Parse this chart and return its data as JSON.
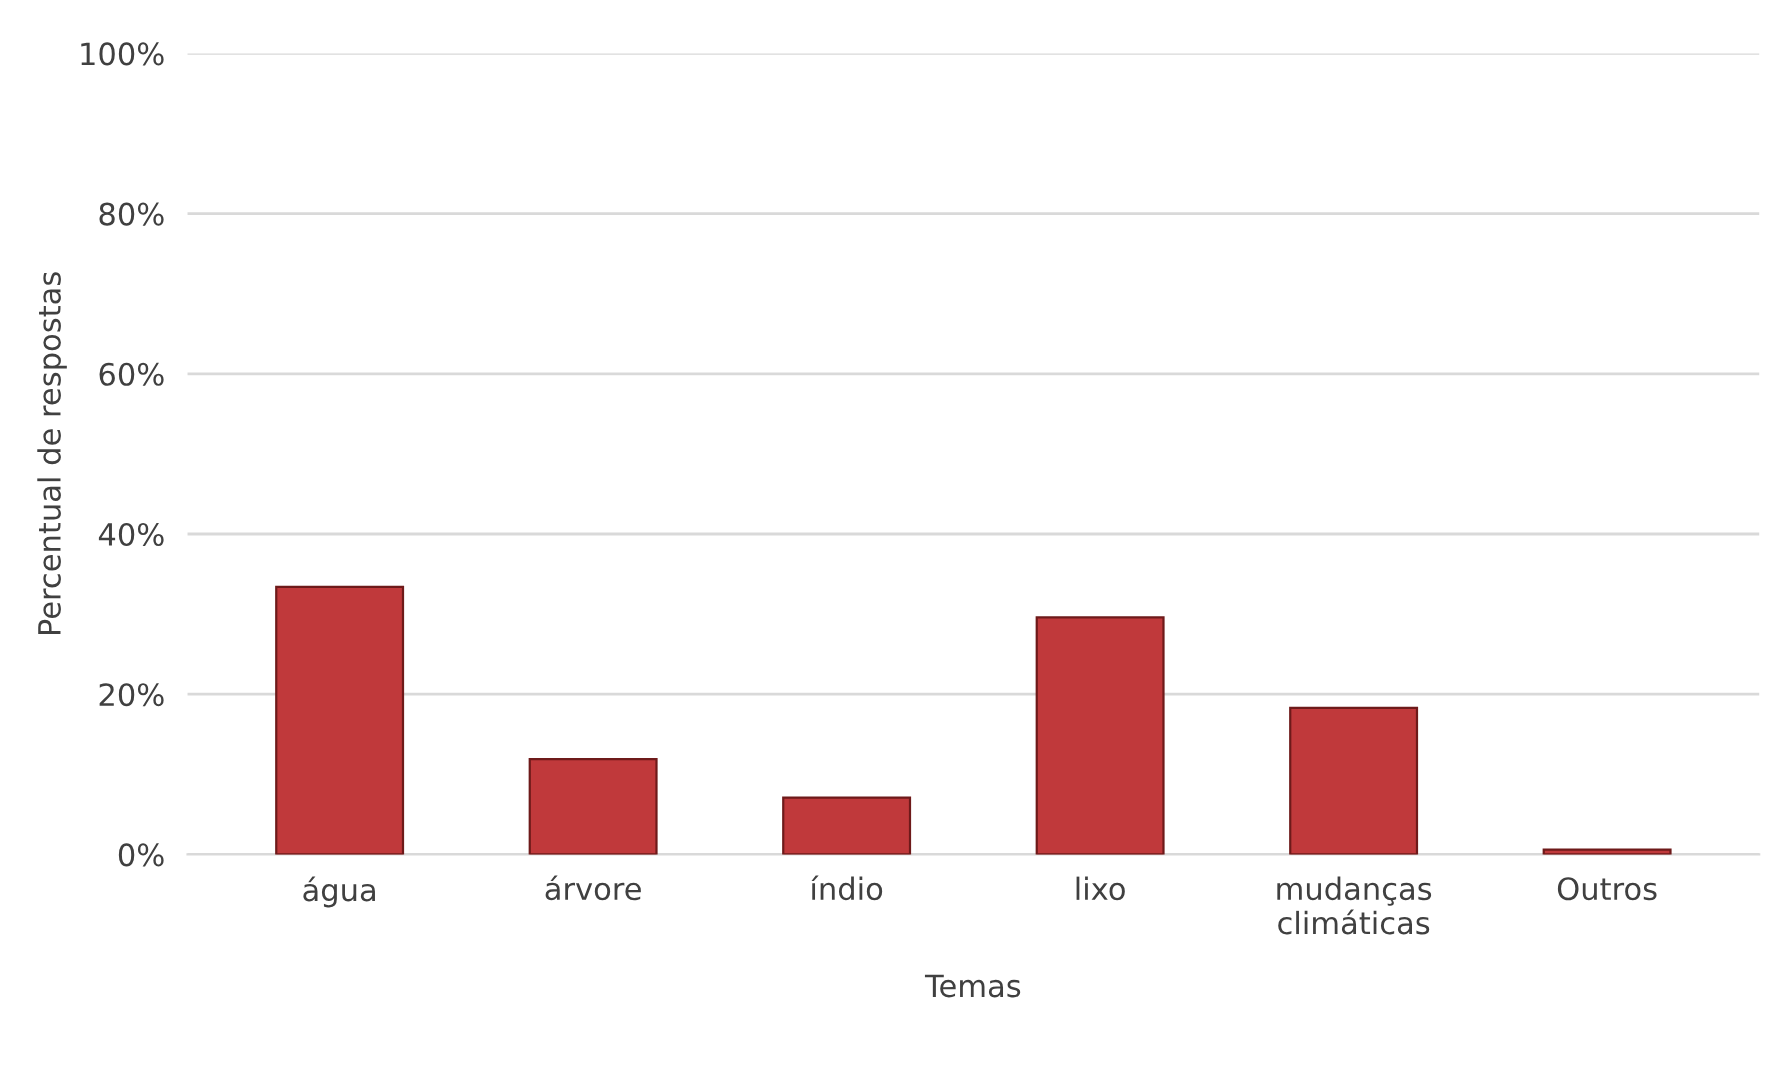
{
  "chart_data": {
    "type": "bar",
    "xlabel": "Temas",
    "ylabel": "Percentual de respostas",
    "categories": [
      "água",
      "árvore",
      "índio",
      "lixo",
      "mudanças\nclimáticas",
      "Outros"
    ],
    "values": [
      33.4,
      11.9,
      7.1,
      29.6,
      18.3,
      0.6
    ],
    "color": "#c0393b",
    "ylim": [
      0,
      100
    ],
    "yticks": [
      {
        "value": 0,
        "label": "0%"
      },
      {
        "value": 20,
        "label": "20%"
      },
      {
        "value": 40,
        "label": "40%"
      },
      {
        "value": 60,
        "label": "60%"
      },
      {
        "value": 80,
        "label": "80%"
      },
      {
        "value": 100,
        "label": "100%"
      }
    ],
    "grid": "y",
    "legend": false
  }
}
